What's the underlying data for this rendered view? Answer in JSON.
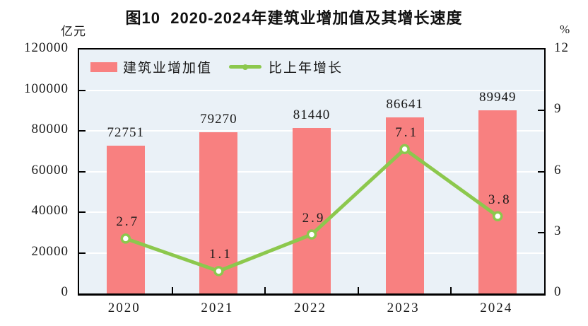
{
  "colors": {
    "bar": "#f88080",
    "line": "#8cc84d",
    "marker_fill": "#ffffff",
    "plot_background": "#eaf1f7",
    "gridline": "#ffffff",
    "axis": "#000000",
    "text": "#1a1a1a"
  },
  "chart_data": {
    "type": "combo",
    "title": "图10  2020-2024年建筑业增加值及其增长速度",
    "categories": [
      "2020",
      "2021",
      "2022",
      "2023",
      "2024"
    ],
    "series": [
      {
        "name": "建筑业增加值",
        "type": "bar",
        "axis": "left",
        "values": [
          72751,
          79270,
          81440,
          86641,
          89949
        ],
        "labels": [
          "72751",
          "79270",
          "81440",
          "86641",
          "89949"
        ]
      },
      {
        "name": "比上年增长",
        "type": "line",
        "axis": "right",
        "values": [
          2.7,
          1.1,
          2.9,
          7.1,
          3.8
        ],
        "labels": [
          "2.7",
          "1.1",
          "2.9",
          "7.1",
          "3.8"
        ]
      }
    ],
    "left_axis": {
      "unit": "亿元",
      "min": 0,
      "max": 120000,
      "tick_step": 20000,
      "tick_labels": [
        "0",
        "20000",
        "40000",
        "60000",
        "80000",
        "100000",
        "120000"
      ]
    },
    "right_axis": {
      "unit": "%",
      "min": 0,
      "max": 12,
      "tick_step": 3,
      "tick_labels": [
        "0",
        "3",
        "6",
        "9",
        "12"
      ]
    },
    "grid": true,
    "legend_position": "top-left-inside"
  }
}
